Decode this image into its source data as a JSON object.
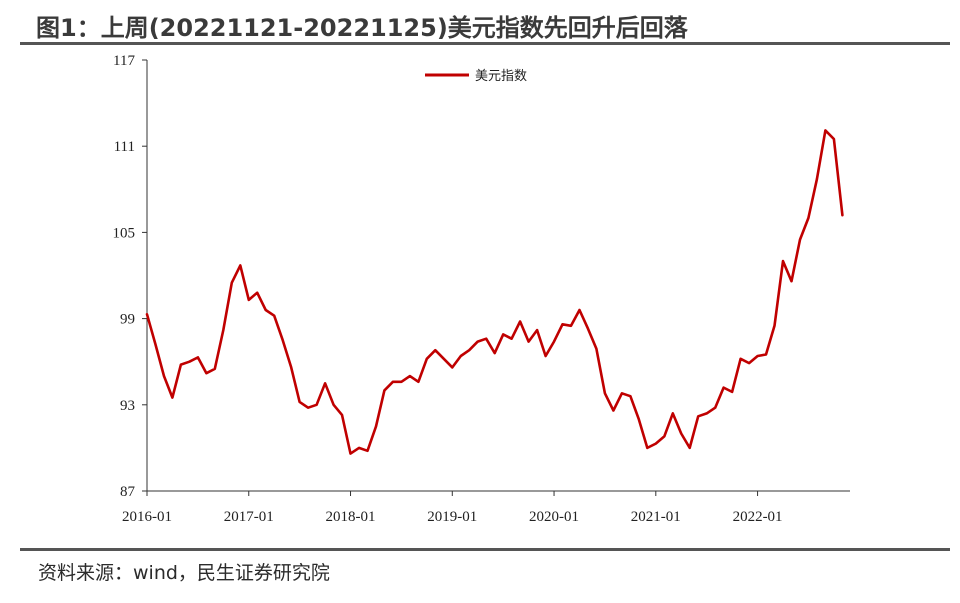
{
  "title": "图1：上周(20221121-20221125)美元指数先回升后回落",
  "source": "资料来源：wind，民生证券研究院",
  "colors": {
    "series": "#c00000",
    "axis": "#333333",
    "rule": "#555555"
  },
  "chart_data": {
    "type": "line",
    "title": "图1：上周(20221121-20221125)美元指数先回升后回落",
    "xlabel": "",
    "ylabel": "",
    "ylim": [
      87,
      117
    ],
    "yticks": [
      87,
      93,
      99,
      105,
      111,
      117
    ],
    "ytick_labels": [
      "87",
      "93",
      "99",
      "105",
      "111",
      "117"
    ],
    "xlim": [
      "2016-01",
      "2022-11"
    ],
    "xticks": [
      "2016-01",
      "2017-01",
      "2018-01",
      "2019-01",
      "2020-01",
      "2021-01",
      "2022-01"
    ],
    "grid": false,
    "legend": {
      "position": "top-center"
    },
    "series": [
      {
        "name": "美元指数",
        "color": "#c00000",
        "x": [
          "2016-01",
          "2016-02",
          "2016-03",
          "2016-04",
          "2016-05",
          "2016-06",
          "2016-07",
          "2016-08",
          "2016-09",
          "2016-10",
          "2016-11",
          "2016-12",
          "2017-01",
          "2017-02",
          "2017-03",
          "2017-04",
          "2017-05",
          "2017-06",
          "2017-07",
          "2017-08",
          "2017-09",
          "2017-10",
          "2017-11",
          "2017-12",
          "2018-01",
          "2018-02",
          "2018-03",
          "2018-04",
          "2018-05",
          "2018-06",
          "2018-07",
          "2018-08",
          "2018-09",
          "2018-10",
          "2018-11",
          "2018-12",
          "2019-01",
          "2019-02",
          "2019-03",
          "2019-04",
          "2019-05",
          "2019-06",
          "2019-07",
          "2019-08",
          "2019-09",
          "2019-10",
          "2019-11",
          "2019-12",
          "2020-01",
          "2020-02",
          "2020-03",
          "2020-04",
          "2020-05",
          "2020-06",
          "2020-07",
          "2020-08",
          "2020-09",
          "2020-10",
          "2020-11",
          "2020-12",
          "2021-01",
          "2021-02",
          "2021-03",
          "2021-04",
          "2021-05",
          "2021-06",
          "2021-07",
          "2021-08",
          "2021-09",
          "2021-10",
          "2021-11",
          "2021-12",
          "2022-01",
          "2022-02",
          "2022-03",
          "2022-04",
          "2022-05",
          "2022-06",
          "2022-07",
          "2022-08",
          "2022-09",
          "2022-10",
          "2022-11"
        ],
        "values": [
          99.3,
          97.2,
          95.0,
          93.5,
          95.8,
          96.0,
          96.3,
          95.2,
          95.5,
          98.2,
          101.5,
          102.7,
          100.3,
          100.8,
          99.6,
          99.2,
          97.5,
          95.6,
          93.2,
          92.8,
          93.0,
          94.5,
          93.0,
          92.3,
          89.6,
          90.0,
          89.8,
          91.5,
          94.0,
          94.6,
          94.6,
          95.0,
          94.6,
          96.2,
          96.8,
          96.2,
          95.6,
          96.4,
          96.8,
          97.4,
          97.6,
          96.6,
          97.9,
          97.6,
          98.8,
          97.4,
          98.2,
          96.4,
          97.4,
          98.6,
          98.5,
          99.6,
          98.3,
          96.9,
          93.8,
          92.6,
          93.8,
          93.6,
          92.0,
          90.0,
          90.3,
          90.8,
          92.4,
          91.0,
          90.0,
          92.2,
          92.4,
          92.8,
          94.2,
          93.9,
          96.2,
          95.9,
          96.4,
          96.5,
          98.5,
          103.0,
          101.6,
          104.5,
          106.0,
          108.7,
          112.1,
          111.5,
          106.2
        ]
      }
    ]
  }
}
